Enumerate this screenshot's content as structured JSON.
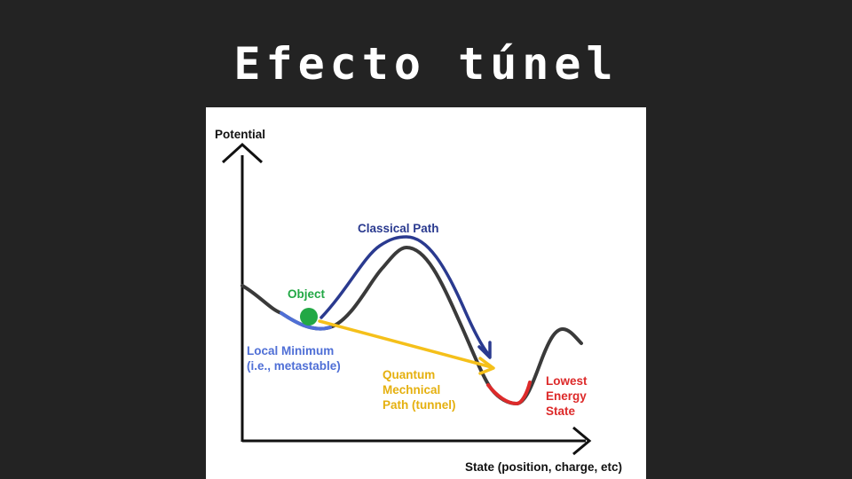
{
  "title": "Efecto túnel",
  "diagram": {
    "y_axis_label": "Potential",
    "x_axis_label": "State (position, charge, etc)",
    "labels": {
      "object": "Object",
      "classical_path": "Classical Path",
      "local_minimum": "Local Minimum\n(i.e., metastable)",
      "quantum_path": "Quantum\nMechnical\nPath (tunnel)",
      "lowest_energy": "Lowest\nEnergy\nState"
    },
    "colors": {
      "background": "#232323",
      "curve": "#3a3a3a",
      "local_minimum": "#4f6fd6",
      "lowest_energy": "#dd2a2a",
      "classical_path": "#2a3a8f",
      "quantum_path": "#f5c01a",
      "object": "#22a845",
      "axis": "#111111"
    }
  }
}
